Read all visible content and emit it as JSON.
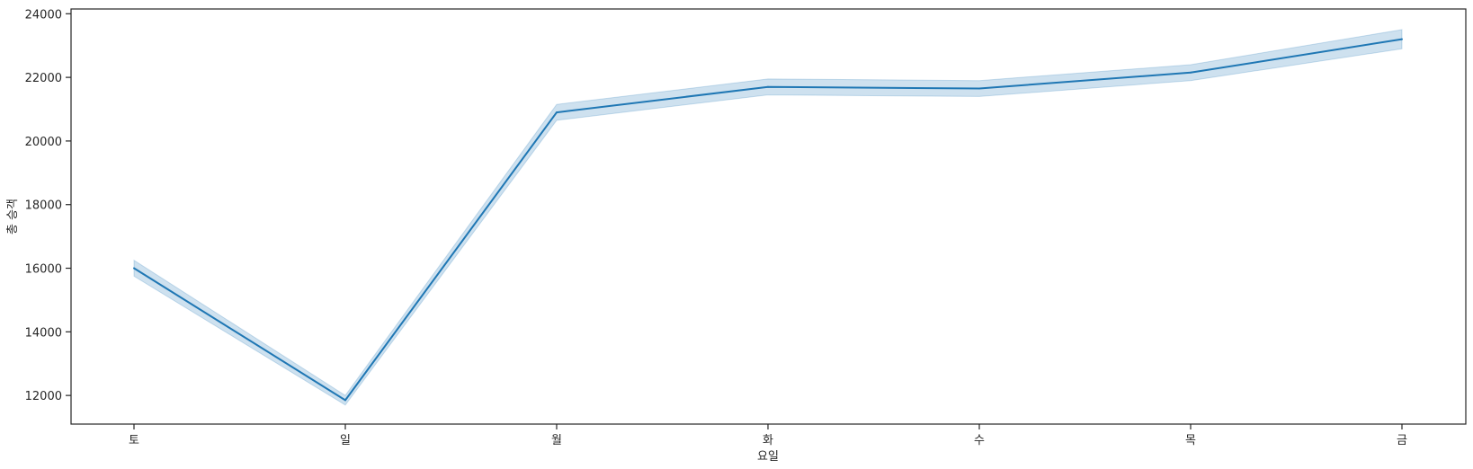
{
  "chart_data": {
    "type": "line",
    "title": "",
    "xlabel": "요일",
    "ylabel": "총 승객",
    "categories": [
      "토",
      "일",
      "월",
      "화",
      "수",
      "목",
      "금"
    ],
    "series": [
      {
        "values": [
          16000,
          11850,
          20900,
          21700,
          21650,
          22150,
          23200
        ],
        "ci_lower": [
          15750,
          11700,
          20650,
          21450,
          21400,
          21900,
          22900
        ],
        "ci_upper": [
          16250,
          12000,
          21150,
          21950,
          21900,
          22400,
          23500
        ],
        "color": "#1f77b4",
        "band_color": "#1f77b4"
      }
    ],
    "ylim": [
      11100,
      24150
    ],
    "yticks": [
      12000,
      14000,
      16000,
      18000,
      20000,
      22000,
      24000
    ],
    "grid": false,
    "legend": "none"
  }
}
